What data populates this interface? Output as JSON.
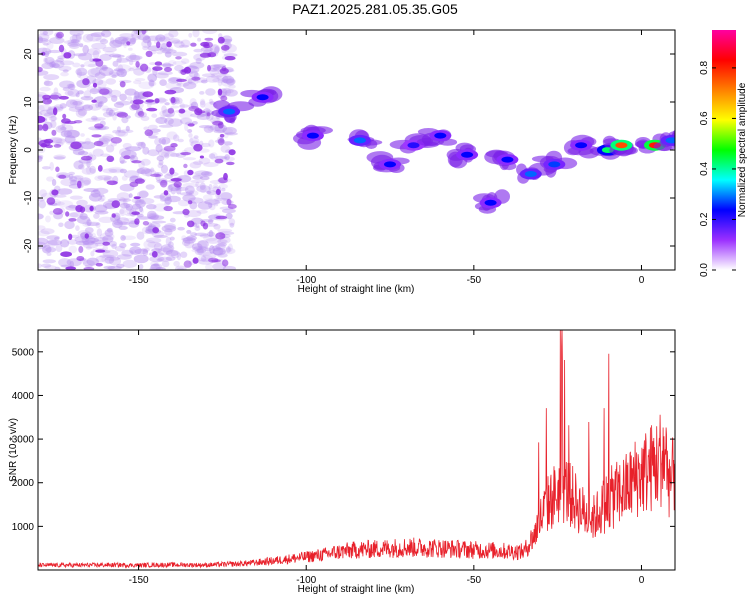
{
  "title": "PAZ1.2025.281.05.35.G05",
  "colors": {
    "axis": "#000000",
    "snr_line": "#e8202a",
    "speckle": "#b48cf0"
  },
  "chart_data": [
    {
      "type": "heatmap",
      "xlabel": "Height of straight line (km)",
      "ylabel": "Frequency (Hz)",
      "xlim": [
        -180,
        10
      ],
      "ylim": [
        -25,
        25
      ],
      "xticks": [
        -150,
        -100,
        -50,
        0
      ],
      "yticks": [
        -20,
        -10,
        0,
        10,
        20
      ],
      "colorbar": {
        "label": "Normalized spectral amplitude",
        "range": [
          0,
          0.95
        ],
        "ticks": [
          0.0,
          0.2,
          0.4,
          0.6,
          0.8
        ],
        "colormap": [
          "#ffffff",
          "#9b30ff",
          "#0000ff",
          "#00ffff",
          "#00ff00",
          "#ffff00",
          "#ff8000",
          "#ff0000",
          "#ff00a0"
        ]
      },
      "features": [
        {
          "x": -123,
          "y": 8,
          "a": 0.3
        },
        {
          "x": -113,
          "y": 11,
          "a": 0.25
        },
        {
          "x": -98,
          "y": 3,
          "a": 0.25
        },
        {
          "x": -84,
          "y": 2,
          "a": 0.3
        },
        {
          "x": -75,
          "y": -3,
          "a": 0.25
        },
        {
          "x": -68,
          "y": 1,
          "a": 0.22
        },
        {
          "x": -60,
          "y": 3,
          "a": 0.25
        },
        {
          "x": -52,
          "y": -1,
          "a": 0.25
        },
        {
          "x": -45,
          "y": -11,
          "a": 0.25
        },
        {
          "x": -40,
          "y": -2,
          "a": 0.25
        },
        {
          "x": -33,
          "y": -5,
          "a": 0.3
        },
        {
          "x": -26,
          "y": -3,
          "a": 0.28
        },
        {
          "x": -18,
          "y": 1,
          "a": 0.25
        },
        {
          "x": -10,
          "y": 0,
          "a": 0.45
        },
        {
          "x": -6,
          "y": 1,
          "a": 0.8
        },
        {
          "x": 4,
          "y": 1,
          "a": 0.85
        },
        {
          "x": 9,
          "y": 2,
          "a": 0.3
        }
      ]
    },
    {
      "type": "line",
      "xlabel": "Height of straight line (km)",
      "ylabel": "SNR (10 * v/v)",
      "xlim": [
        -180,
        10
      ],
      "ylim": [
        0,
        5500
      ],
      "xticks": [
        -150,
        -100,
        -50,
        0
      ],
      "yticks": [
        1000,
        2000,
        3000,
        4000,
        5000
      ],
      "series": [
        {
          "name": "SNR",
          "x": [
            -180,
            -170,
            -160,
            -150,
            -140,
            -130,
            -120,
            -115,
            -110,
            -100,
            -95,
            -90,
            -85,
            -80,
            -75,
            -70,
            -65,
            -60,
            -55,
            -50,
            -45,
            -40,
            -35,
            -32,
            -30,
            -28,
            -26,
            -24,
            -22,
            -20,
            -18,
            -16,
            -14,
            -12,
            -10,
            -8,
            -6,
            -4,
            -2,
            0,
            2,
            4,
            6,
            7,
            8,
            9,
            10
          ],
          "values": [
            110,
            110,
            115,
            110,
            120,
            115,
            140,
            170,
            210,
            300,
            350,
            420,
            460,
            480,
            500,
            520,
            510,
            500,
            480,
            460,
            450,
            430,
            420,
            800,
            1200,
            1500,
            1700,
            1900,
            1800,
            1600,
            1400,
            1200,
            1200,
            1400,
            1600,
            1700,
            1800,
            1900,
            2100,
            2200,
            2300,
            2400,
            2600,
            2700,
            2200,
            2000,
            2400
          ]
        }
      ]
    }
  ]
}
